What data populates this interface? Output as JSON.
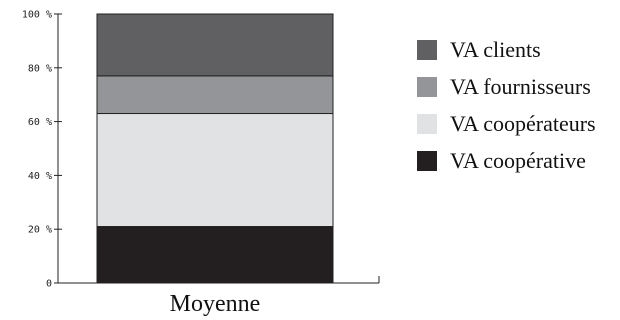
{
  "chart_data": {
    "type": "bar",
    "stacked": true,
    "categories": [
      "Moyenne"
    ],
    "series": [
      {
        "name": "VA coopérative",
        "values": [
          21
        ],
        "color": "#231f20"
      },
      {
        "name": "VA coopérateurs",
        "values": [
          42
        ],
        "color": "#e1e2e4"
      },
      {
        "name": "VA fournisseurs",
        "values": [
          14
        ],
        "color": "#949598"
      },
      {
        "name": "VA clients",
        "values": [
          23
        ],
        "color": "#606062"
      }
    ],
    "legend_order": [
      "VA clients",
      "VA fournisseurs",
      "VA coopérateurs",
      "VA coopérative"
    ],
    "ylim": [
      0,
      100
    ],
    "yticks": [
      0,
      20,
      40,
      60,
      80,
      100
    ],
    "ytick_labels": [
      "0",
      "20 %",
      "40 %",
      "60 %",
      "80 %",
      "100 %"
    ],
    "grid": false,
    "legend_position": "right",
    "title": "",
    "xlabel": "",
    "ylabel": ""
  }
}
